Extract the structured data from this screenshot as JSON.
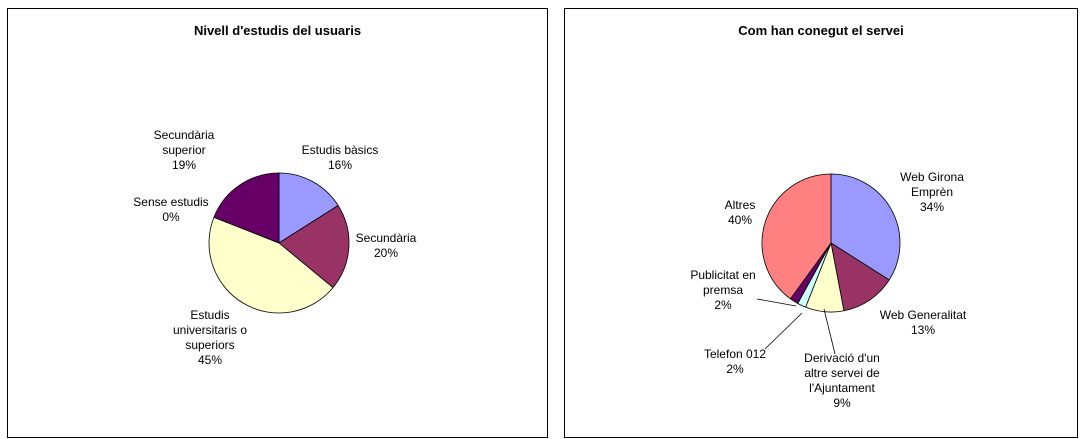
{
  "chart_data": [
    {
      "type": "pie",
      "title": "Nivell d'estudis del usuaris",
      "slices": [
        {
          "label": [
            "Estudis bàsics"
          ],
          "value": 16,
          "pct": "16%",
          "color": "#9999ff"
        },
        {
          "label": [
            "Secundària"
          ],
          "value": 20,
          "pct": "20%",
          "color": "#993366"
        },
        {
          "label": [
            "Estudis",
            "universitaris o",
            "superiors"
          ],
          "value": 45,
          "pct": "45%",
          "color": "#ffffcc"
        },
        {
          "label": [
            "Sense estudis"
          ],
          "value": 0,
          "pct": "0%",
          "color": "#ccffff"
        },
        {
          "label": [
            "Secundària",
            "superior"
          ],
          "value": 19,
          "pct": "19%",
          "color": "#660066"
        }
      ]
    },
    {
      "type": "pie",
      "title": "Com han conegut el servei",
      "slices": [
        {
          "label": [
            "Web Girona",
            "Emprèn"
          ],
          "value": 34,
          "pct": "34%",
          "color": "#9999ff"
        },
        {
          "label": [
            "Web Generalitat"
          ],
          "value": 13,
          "pct": "13%",
          "color": "#993366"
        },
        {
          "label": [
            "Derivació d'un",
            "altre servei de",
            "l'Ajuntament"
          ],
          "value": 9,
          "pct": "9%",
          "color": "#ffffcc"
        },
        {
          "label": [
            "Telefon 012"
          ],
          "value": 2,
          "pct": "2%",
          "color": "#ccffff"
        },
        {
          "label": [
            "Publicitat en",
            "premsa"
          ],
          "value": 2,
          "pct": "2%",
          "color": "#660066"
        },
        {
          "label": [
            "Altres"
          ],
          "value": 40,
          "pct": "40%",
          "color": "#ff8080"
        }
      ]
    }
  ]
}
